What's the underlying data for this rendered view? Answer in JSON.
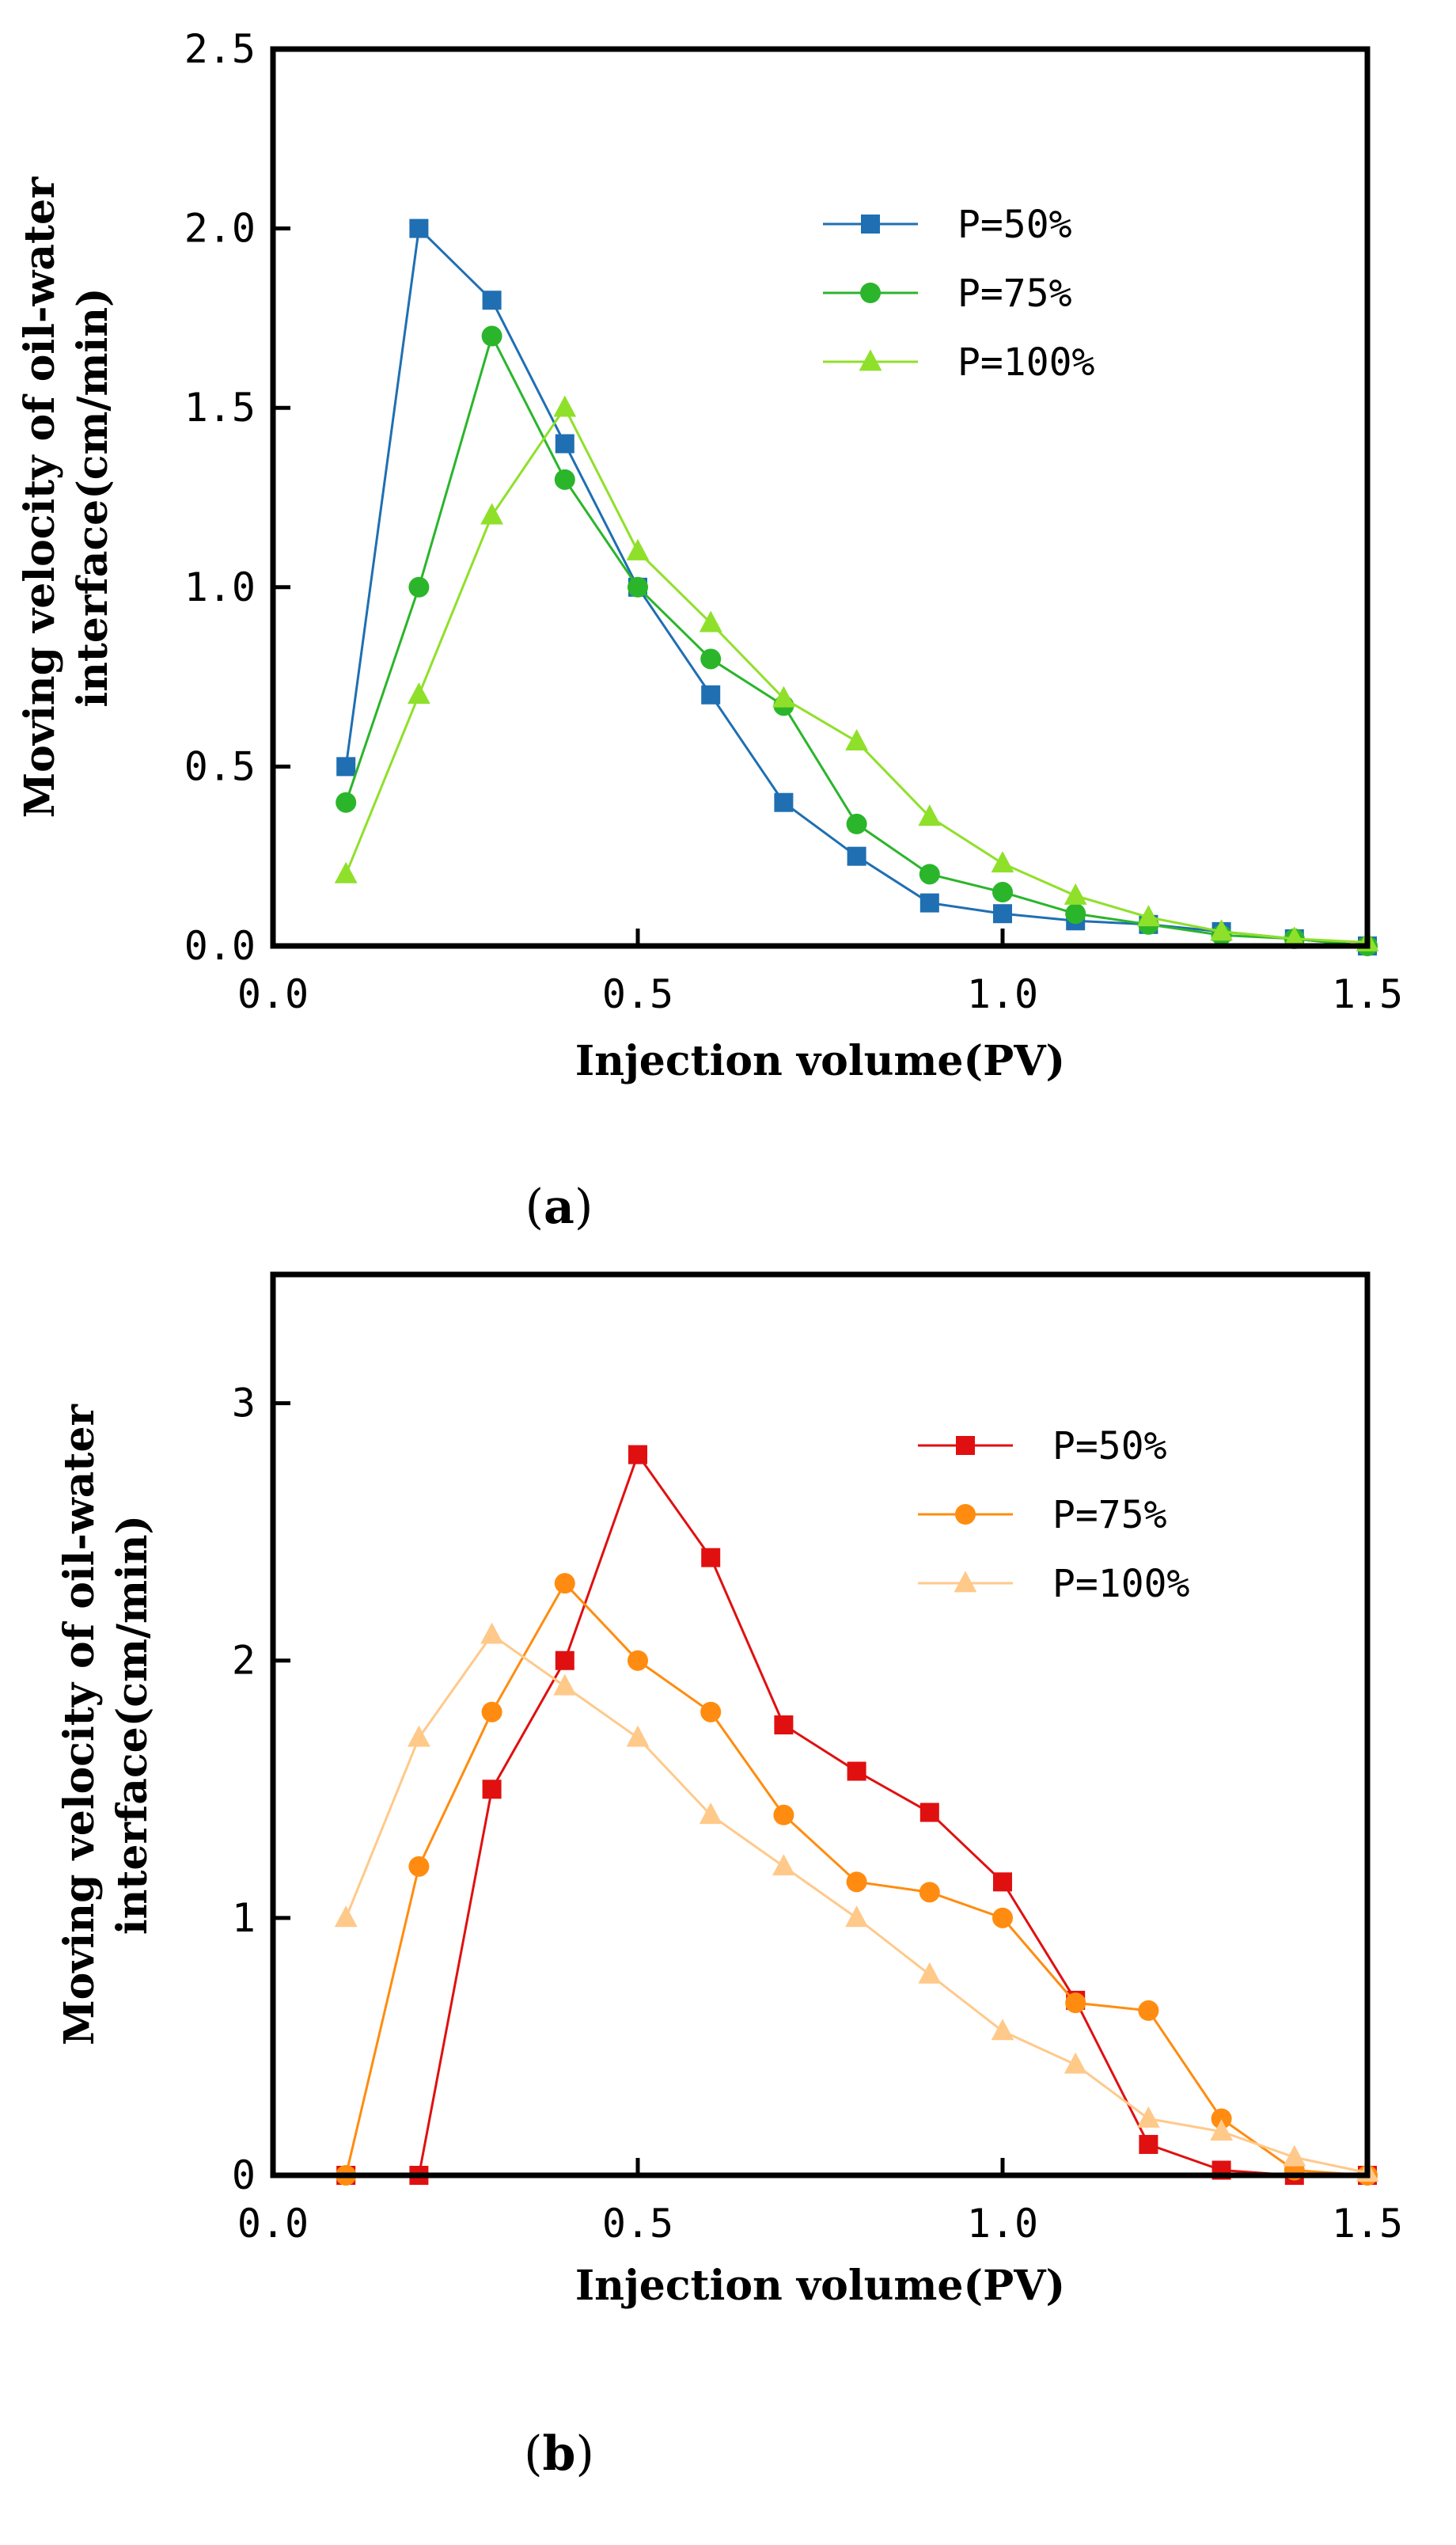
{
  "chart_data": [
    {
      "type": "line",
      "panel_label": "a",
      "caption_open": "(",
      "caption_close": ")",
      "xlabel": "Injection volume(PV)",
      "ylabel_line1": "Moving velocity of oil-water",
      "ylabel_line2": "interface(cm/min)",
      "xlim": [
        0,
        1.5
      ],
      "ylim": [
        0,
        2.5
      ],
      "xticks": [
        0,
        0.5,
        1.0,
        1.5
      ],
      "xtick_labels": [
        "0.0",
        "0.5",
        "1.0",
        "1.5"
      ],
      "yticks": [
        0,
        0.5,
        1.0,
        1.5,
        2.0,
        2.5
      ],
      "ytick_labels": [
        "0.0",
        "0.5",
        "1.0",
        "1.5",
        "2.0",
        "2.5"
      ],
      "legend_position": "top-right",
      "series": [
        {
          "name": "P=50%",
          "marker": "square",
          "color": "#1f6fb2",
          "x": [
            0.1,
            0.2,
            0.3,
            0.4,
            0.5,
            0.6,
            0.7,
            0.8,
            0.9,
            1.0,
            1.1,
            1.2,
            1.3,
            1.4,
            1.5
          ],
          "y": [
            0.5,
            2.0,
            1.8,
            1.4,
            1.0,
            0.7,
            0.4,
            0.25,
            0.12,
            0.09,
            0.07,
            0.06,
            0.04,
            0.02,
            0.0
          ]
        },
        {
          "name": "P=75%",
          "marker": "circle",
          "color": "#2bb52b",
          "x": [
            0.1,
            0.2,
            0.3,
            0.4,
            0.5,
            0.6,
            0.7,
            0.8,
            0.9,
            1.0,
            1.1,
            1.2,
            1.3,
            1.4,
            1.5
          ],
          "y": [
            0.4,
            1.0,
            1.7,
            1.3,
            1.0,
            0.8,
            0.67,
            0.34,
            0.2,
            0.15,
            0.09,
            0.06,
            0.03,
            0.02,
            0.0
          ]
        },
        {
          "name": "P=100%",
          "marker": "triangle",
          "color": "#8fe02a",
          "x": [
            0.1,
            0.2,
            0.3,
            0.4,
            0.5,
            0.6,
            0.7,
            0.8,
            0.9,
            1.0,
            1.1,
            1.2,
            1.3,
            1.4,
            1.5
          ],
          "y": [
            0.2,
            0.7,
            1.2,
            1.5,
            1.1,
            0.9,
            0.69,
            0.57,
            0.36,
            0.23,
            0.14,
            0.08,
            0.04,
            0.02,
            0.01
          ]
        }
      ]
    },
    {
      "type": "line",
      "panel_label": "b",
      "caption_open": "(",
      "caption_close": ")",
      "xlabel": "Injection volume(PV)",
      "ylabel_line1": "Moving velocity of oil-water",
      "ylabel_line2": "interface(cm/min)",
      "xlim": [
        0,
        1.5
      ],
      "ylim": [
        0,
        3.5
      ],
      "xticks": [
        0,
        0.5,
        1.0,
        1.5
      ],
      "xtick_labels": [
        "0.0",
        "0.5",
        "1.0",
        "1.5"
      ],
      "yticks": [
        0,
        1,
        2,
        3
      ],
      "ytick_labels": [
        "0",
        "1",
        "2",
        "3"
      ],
      "legend_position": "top-right",
      "series": [
        {
          "name": "P=50%",
          "marker": "square",
          "color": "#e01010",
          "x": [
            0.1,
            0.2,
            0.3,
            0.4,
            0.5,
            0.6,
            0.7,
            0.8,
            0.9,
            1.0,
            1.1,
            1.2,
            1.3,
            1.4,
            1.5
          ],
          "y": [
            0.0,
            0.0,
            1.5,
            2.0,
            2.8,
            2.4,
            1.75,
            1.57,
            1.41,
            1.14,
            0.68,
            0.12,
            0.02,
            0.0,
            0.0
          ]
        },
        {
          "name": "P=75%",
          "marker": "circle",
          "color": "#ff8c10",
          "x": [
            0.1,
            0.2,
            0.3,
            0.4,
            0.5,
            0.6,
            0.7,
            0.8,
            0.9,
            1.0,
            1.1,
            1.2,
            1.3,
            1.4,
            1.5
          ],
          "y": [
            0.0,
            1.2,
            1.8,
            2.3,
            2.0,
            1.8,
            1.4,
            1.14,
            1.1,
            1.0,
            0.67,
            0.64,
            0.22,
            0.02,
            0.0
          ]
        },
        {
          "name": "P=100%",
          "marker": "triangle",
          "color": "#ffc98a",
          "x": [
            0.1,
            0.2,
            0.3,
            0.4,
            0.5,
            0.6,
            0.7,
            0.8,
            0.9,
            1.0,
            1.1,
            1.2,
            1.3,
            1.4,
            1.5
          ],
          "y": [
            1.0,
            1.7,
            2.1,
            1.9,
            1.7,
            1.4,
            1.2,
            1.0,
            0.78,
            0.56,
            0.43,
            0.22,
            0.17,
            0.07,
            0.01
          ]
        }
      ]
    }
  ]
}
